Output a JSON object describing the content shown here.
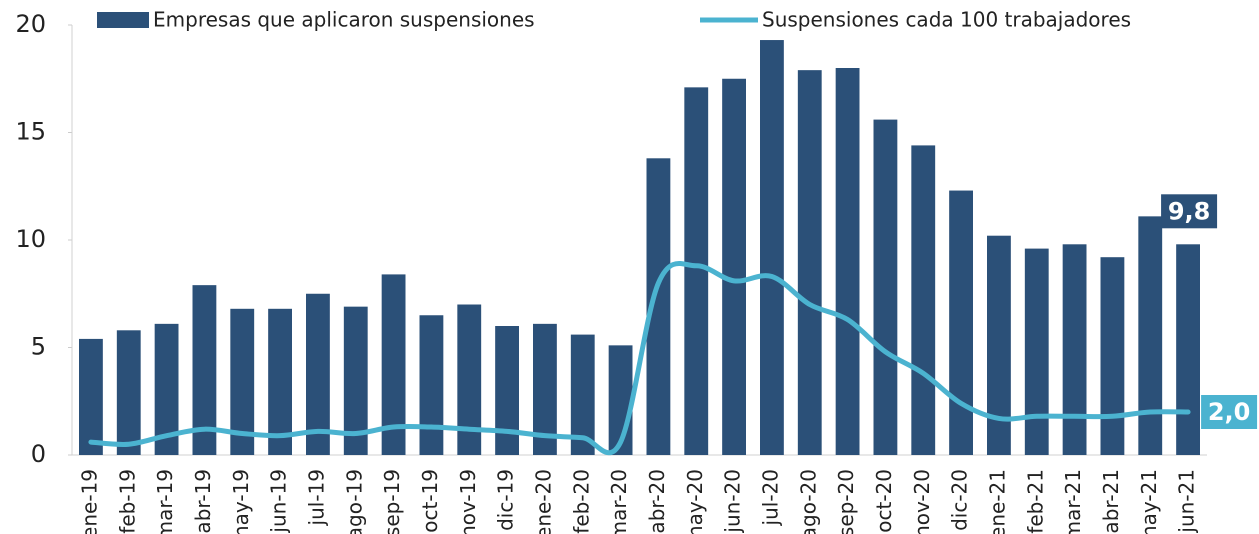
{
  "chart_data": {
    "type": "bar-line",
    "categories": [
      "ene-19",
      "feb-19",
      "mar-19",
      "abr-19",
      "may-19",
      "jun-19",
      "jul-19",
      "ago-19",
      "sep-19",
      "oct-19",
      "nov-19",
      "dic-19",
      "ene-20",
      "feb-20",
      "mar-20",
      "abr-20",
      "may-20",
      "jun-20",
      "jul-20",
      "ago-20",
      "sep-20",
      "oct-20",
      "nov-20",
      "dic-20",
      "ene-21",
      "feb-21",
      "mar-21",
      "abr-21",
      "may-21",
      "jun-21"
    ],
    "series": [
      {
        "name": "Empresas que aplicaron suspensiones",
        "type": "bar",
        "color": "#2b5078",
        "values": [
          5.4,
          5.8,
          6.1,
          7.9,
          6.8,
          6.8,
          7.5,
          6.9,
          8.4,
          6.5,
          7.0,
          6.0,
          6.1,
          5.6,
          5.1,
          13.8,
          17.1,
          17.5,
          19.3,
          17.9,
          18.0,
          15.6,
          14.4,
          12.3,
          10.2,
          9.6,
          9.8,
          9.2,
          11.1,
          9.8
        ],
        "value_labels": [
          null,
          null,
          null,
          null,
          null,
          null,
          null,
          null,
          null,
          null,
          null,
          null,
          null,
          null,
          null,
          null,
          null,
          null,
          null,
          null,
          null,
          null,
          null,
          null,
          null,
          null,
          null,
          null,
          null,
          "9,8"
        ]
      },
      {
        "name": "Suspensiones cada 100 trabajadores",
        "type": "line",
        "color": "#4bb3d0",
        "values": [
          0.6,
          0.5,
          0.9,
          1.2,
          1.0,
          0.9,
          1.1,
          1.0,
          1.3,
          1.3,
          1.2,
          1.1,
          0.9,
          0.8,
          0.6,
          8.0,
          8.8,
          8.1,
          8.3,
          7.0,
          6.3,
          4.8,
          3.8,
          2.4,
          1.7,
          1.8,
          1.8,
          1.8,
          2.0,
          2.0
        ],
        "value_labels": [
          null,
          null,
          null,
          null,
          null,
          null,
          null,
          null,
          null,
          null,
          null,
          null,
          null,
          null,
          null,
          null,
          null,
          null,
          null,
          null,
          null,
          null,
          null,
          null,
          null,
          null,
          null,
          null,
          null,
          "2,0"
        ]
      }
    ],
    "ylim": [
      0,
      20
    ],
    "yticks": [
      0,
      5,
      10,
      15,
      20
    ],
    "legend": "top"
  }
}
